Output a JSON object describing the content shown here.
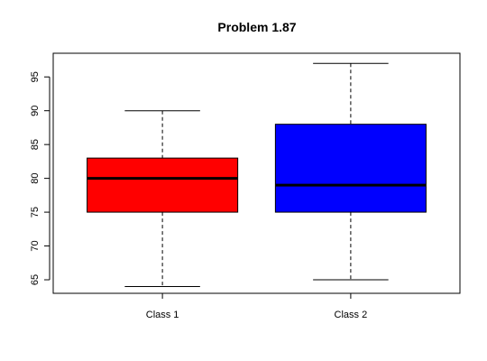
{
  "chart_data": {
    "type": "box",
    "title": "Problem 1.87",
    "xlabel": "",
    "ylabel": "",
    "categories": [
      "Class 1",
      "Class 2"
    ],
    "boxes": [
      {
        "category": "Class 1",
        "min": 64,
        "q1": 75,
        "median": 80,
        "q3": 83,
        "max": 90,
        "color": "#ff0000"
      },
      {
        "category": "Class 2",
        "min": 65,
        "q1": 75,
        "median": 79,
        "q3": 88,
        "max": 97,
        "color": "#0000ff"
      }
    ],
    "yticks": [
      65,
      70,
      75,
      80,
      85,
      90,
      95
    ],
    "ylim": [
      63,
      98.5
    ],
    "grid": false,
    "legend": "none"
  }
}
